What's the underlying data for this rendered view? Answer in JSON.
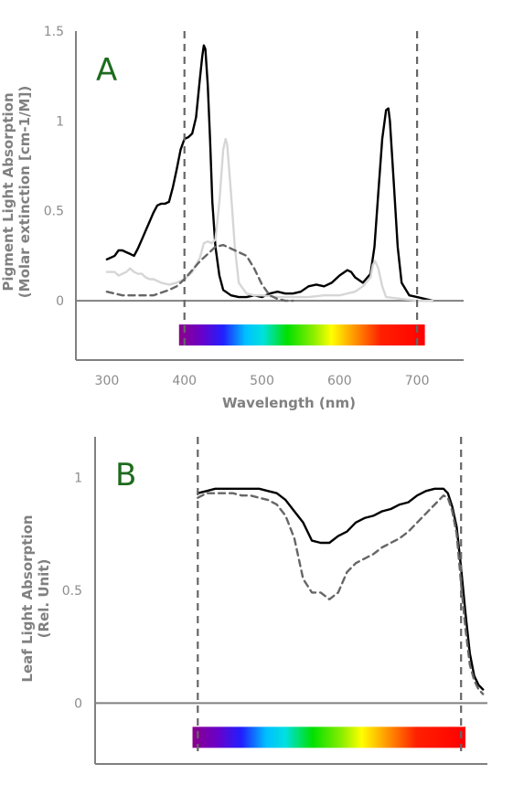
{
  "chart_data": [
    {
      "panel": "A",
      "type": "line",
      "panel_label": "A",
      "xlabel": "Wavelength (nm)",
      "ylabel_lines": [
        "Pigment Light Absorption",
        "(Molar extinction [cm-1/M])"
      ],
      "xlim": [
        260,
        760
      ],
      "ylim": [
        -0.33,
        1.5
      ],
      "x_ticks": [
        "300",
        "400",
        "500",
        "600",
        "700"
      ],
      "y_ticks": [
        "0",
        "0.5",
        "1",
        "1.5"
      ],
      "reference_lines_nm": [
        400,
        700
      ],
      "spectrum_bar": {
        "from": 393,
        "to": 710
      },
      "series": [
        {
          "color": "#000000",
          "style": "solid",
          "x": [
            300,
            305,
            310,
            315,
            320,
            325,
            330,
            335,
            340,
            345,
            350,
            355,
            360,
            365,
            370,
            375,
            380,
            385,
            390,
            395,
            400,
            405,
            410,
            415,
            420,
            423,
            425,
            427,
            430,
            433,
            436,
            440,
            445,
            450,
            460,
            470,
            480,
            490,
            500,
            510,
            520,
            530,
            540,
            550,
            560,
            570,
            580,
            590,
            600,
            610,
            615,
            620,
            630,
            640,
            645,
            650,
            655,
            660,
            663,
            665,
            670,
            675,
            680,
            690,
            700,
            710,
            720
          ],
          "y": [
            0.23,
            0.24,
            0.25,
            0.28,
            0.28,
            0.27,
            0.26,
            0.25,
            0.29,
            0.34,
            0.39,
            0.44,
            0.49,
            0.53,
            0.54,
            0.54,
            0.55,
            0.63,
            0.73,
            0.84,
            0.9,
            0.91,
            0.93,
            1.02,
            1.24,
            1.36,
            1.42,
            1.4,
            1.2,
            0.9,
            0.55,
            0.3,
            0.14,
            0.06,
            0.03,
            0.02,
            0.02,
            0.03,
            0.02,
            0.04,
            0.05,
            0.04,
            0.04,
            0.05,
            0.08,
            0.09,
            0.08,
            0.1,
            0.14,
            0.17,
            0.16,
            0.13,
            0.1,
            0.15,
            0.3,
            0.6,
            0.9,
            1.06,
            1.07,
            1.0,
            0.65,
            0.3,
            0.1,
            0.03,
            0.02,
            0.01,
            0.0
          ]
        },
        {
          "color": "#d6d6d6",
          "style": "solid",
          "x": [
            300,
            310,
            315,
            320,
            325,
            330,
            335,
            340,
            345,
            350,
            355,
            360,
            370,
            380,
            390,
            400,
            410,
            420,
            425,
            430,
            435,
            440,
            445,
            450,
            453,
            455,
            460,
            465,
            470,
            480,
            490,
            500,
            520,
            540,
            560,
            580,
            600,
            620,
            630,
            640,
            643,
            646,
            650,
            655,
            660,
            680,
            700,
            720
          ],
          "y": [
            0.16,
            0.16,
            0.14,
            0.15,
            0.16,
            0.18,
            0.16,
            0.15,
            0.15,
            0.13,
            0.12,
            0.12,
            0.1,
            0.09,
            0.1,
            0.12,
            0.16,
            0.24,
            0.32,
            0.33,
            0.32,
            0.34,
            0.55,
            0.84,
            0.9,
            0.87,
            0.6,
            0.3,
            0.1,
            0.04,
            0.03,
            0.03,
            0.02,
            0.02,
            0.02,
            0.03,
            0.03,
            0.05,
            0.08,
            0.13,
            0.2,
            0.22,
            0.18,
            0.08,
            0.02,
            0.01,
            0.0,
            0.0
          ]
        },
        {
          "color": "#666666",
          "style": "dashed",
          "x": [
            300,
            320,
            340,
            360,
            380,
            390,
            400,
            410,
            420,
            430,
            440,
            450,
            460,
            470,
            480,
            490,
            500,
            510,
            520,
            530,
            540
          ],
          "y": [
            0.05,
            0.03,
            0.03,
            0.03,
            0.06,
            0.08,
            0.12,
            0.17,
            0.22,
            0.26,
            0.3,
            0.31,
            0.29,
            0.27,
            0.25,
            0.18,
            0.09,
            0.03,
            0.01,
            0.0,
            0.0
          ]
        }
      ]
    },
    {
      "panel": "B",
      "type": "line",
      "panel_label": "B",
      "xlabel": "",
      "ylabel_lines": [
        "Leaf Light Absorption",
        "(Rel. Unit)"
      ],
      "xlim": [
        283,
        730
      ],
      "ylim": [
        -0.27,
        1.18
      ],
      "y_ticks": [
        "0",
        "0.5",
        "1"
      ],
      "reference_lines_nm": [
        400,
        700
      ],
      "spectrum_bar": {
        "from": 394,
        "to": 705
      },
      "series": [
        {
          "color": "#000000",
          "style": "solid",
          "x": [
            400,
            410,
            420,
            430,
            440,
            450,
            460,
            470,
            480,
            490,
            500,
            510,
            520,
            530,
            540,
            550,
            560,
            570,
            580,
            590,
            600,
            610,
            620,
            630,
            640,
            650,
            660,
            670,
            680,
            685,
            690,
            695,
            700,
            705,
            710,
            715,
            720,
            725
          ],
          "y": [
            0.93,
            0.94,
            0.95,
            0.95,
            0.95,
            0.95,
            0.95,
            0.95,
            0.94,
            0.93,
            0.9,
            0.85,
            0.8,
            0.72,
            0.71,
            0.71,
            0.74,
            0.76,
            0.8,
            0.82,
            0.83,
            0.85,
            0.86,
            0.88,
            0.89,
            0.92,
            0.94,
            0.95,
            0.95,
            0.93,
            0.87,
            0.78,
            0.6,
            0.4,
            0.22,
            0.12,
            0.08,
            0.06
          ]
        },
        {
          "color": "#666666",
          "style": "dashed",
          "x": [
            400,
            410,
            420,
            430,
            440,
            450,
            460,
            470,
            480,
            490,
            500,
            510,
            520,
            530,
            540,
            550,
            560,
            570,
            580,
            590,
            600,
            610,
            620,
            630,
            640,
            650,
            660,
            670,
            680,
            685,
            690,
            695,
            700,
            705,
            710,
            715,
            720,
            725
          ],
          "y": [
            0.91,
            0.93,
            0.93,
            0.93,
            0.93,
            0.92,
            0.92,
            0.91,
            0.9,
            0.88,
            0.83,
            0.73,
            0.55,
            0.49,
            0.49,
            0.46,
            0.49,
            0.58,
            0.62,
            0.64,
            0.66,
            0.69,
            0.71,
            0.73,
            0.76,
            0.8,
            0.84,
            0.88,
            0.92,
            0.91,
            0.85,
            0.75,
            0.53,
            0.33,
            0.17,
            0.1,
            0.06,
            0.04
          ]
        }
      ]
    }
  ]
}
